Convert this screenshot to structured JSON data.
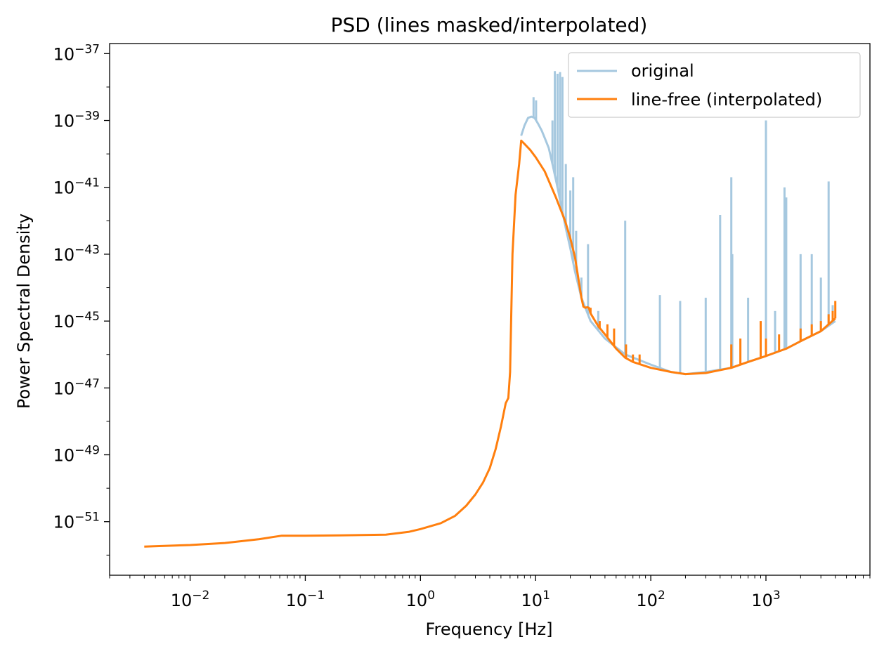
{
  "chart_data": {
    "type": "line",
    "title": "PSD (lines masked/interpolated)",
    "xlabel": "Frequency [Hz]",
    "ylabel": "Power Spectral Density",
    "xscale": "log",
    "yscale": "log",
    "xlim": [
      0.002,
      8000
    ],
    "ylim": [
      2.5e-53,
      2e-37
    ],
    "x_ticks": [
      {
        "value": 0.01,
        "base": "10",
        "exp": "−2"
      },
      {
        "value": 0.1,
        "base": "10",
        "exp": "−1"
      },
      {
        "value": 1,
        "base": "10",
        "exp": "0"
      },
      {
        "value": 10,
        "base": "10",
        "exp": "1"
      },
      {
        "value": 100,
        "base": "10",
        "exp": "2"
      },
      {
        "value": 1000,
        "base": "10",
        "exp": "3"
      }
    ],
    "y_ticks": [
      {
        "value": 1e-37,
        "base": "10",
        "exp": "−37"
      },
      {
        "value": 1e-39,
        "base": "10",
        "exp": "−39"
      },
      {
        "value": 1e-41,
        "base": "10",
        "exp": "−41"
      },
      {
        "value": 1e-43,
        "base": "10",
        "exp": "−43"
      },
      {
        "value": 1e-45,
        "base": "10",
        "exp": "−45"
      },
      {
        "value": 1e-47,
        "base": "10",
        "exp": "−47"
      },
      {
        "value": 1e-49,
        "base": "10",
        "exp": "−49"
      },
      {
        "value": 1e-51,
        "base": "10",
        "exp": "−51"
      }
    ],
    "grid": false,
    "legend_position": "top-right",
    "series": [
      {
        "name": "original",
        "color": "#a6c8df",
        "x": [
          7.5,
          8.0,
          8.6,
          9.2,
          9.8,
          10.5,
          11.3,
          12.0,
          13.0,
          14.0,
          15.5,
          17.0,
          18.5,
          20.0,
          22.0,
          25.0,
          30.0,
          40.0,
          60.0,
          100.0,
          150.0,
          200.0,
          300.0,
          500.0,
          700.0,
          1000.0,
          1500.0,
          2000.0,
          3000.0,
          4000.0
        ],
        "y": [
          3.5e-40,
          7e-40,
          1.2e-39,
          1.3e-39,
          1.2e-39,
          8e-40,
          5e-40,
          3e-40,
          1.5e-40,
          5e-41,
          1e-41,
          2e-42,
          5e-43,
          1.5e-43,
          3e-44,
          5e-45,
          1e-45,
          3e-46,
          1e-46,
          5e-47,
          3e-47,
          2.6e-47,
          3e-47,
          4e-47,
          6e-47,
          9e-47,
          1.5e-46,
          2.5e-46,
          5e-46,
          1e-45
        ],
        "spikes": [
          {
            "x": 9.6,
            "y": 5e-39
          },
          {
            "x": 10.1,
            "y": 4e-39
          },
          {
            "x": 14.7,
            "y": 3e-38
          },
          {
            "x": 15.5,
            "y": 2.5e-38
          },
          {
            "x": 16.3,
            "y": 2.8e-38
          },
          {
            "x": 17.1,
            "y": 2e-38
          },
          {
            "x": 14.0,
            "y": 1e-39
          },
          {
            "x": 18.3,
            "y": 5e-41
          },
          {
            "x": 20.0,
            "y": 8e-42
          },
          {
            "x": 21.2,
            "y": 2e-41
          },
          {
            "x": 22.5,
            "y": 5e-43
          },
          {
            "x": 25.0,
            "y": 2e-44
          },
          {
            "x": 28.5,
            "y": 2e-43
          },
          {
            "x": 35.0,
            "y": 2e-45
          },
          {
            "x": 60.0,
            "y": 1e-42
          },
          {
            "x": 120.0,
            "y": 6e-45
          },
          {
            "x": 180.0,
            "y": 4e-45
          },
          {
            "x": 300.0,
            "y": 5e-45
          },
          {
            "x": 400.0,
            "y": 1.5e-42
          },
          {
            "x": 500.0,
            "y": 2e-41
          },
          {
            "x": 510.0,
            "y": 1e-43
          },
          {
            "x": 700.0,
            "y": 5e-45
          },
          {
            "x": 1000.0,
            "y": 1e-39
          },
          {
            "x": 1200.0,
            "y": 2e-45
          },
          {
            "x": 1450.0,
            "y": 1e-41
          },
          {
            "x": 1500.0,
            "y": 5e-42
          },
          {
            "x": 2000.0,
            "y": 1e-43
          },
          {
            "x": 2500.0,
            "y": 1e-43
          },
          {
            "x": 3000.0,
            "y": 2e-44
          },
          {
            "x": 3500.0,
            "y": 1.5e-41
          },
          {
            "x": 3800.0,
            "y": 3e-45
          }
        ]
      },
      {
        "name": "line-free (interpolated)",
        "color": "#ff7f0e",
        "x": [
          0.004,
          0.01,
          0.02,
          0.04,
          0.0625,
          0.1,
          0.2,
          0.5,
          0.8,
          1.0,
          1.5,
          2.0,
          2.5,
          3.0,
          3.5,
          4.0,
          4.5,
          5.0,
          5.5,
          5.8,
          6.0,
          6.3,
          6.7,
          7.2,
          7.5,
          8.0,
          9.0,
          10.0,
          12.0,
          15.0,
          18.0,
          20.0,
          22.0,
          25.0,
          26.0,
          27.0,
          28.0,
          29.0,
          30.0,
          35.0,
          40.0,
          50.0,
          60.0,
          70.0,
          100.0,
          150.0,
          200.0,
          300.0,
          500.0,
          700.0,
          1000.0,
          1500.0,
          2000.0,
          3000.0,
          3500.0,
          4000.0
        ],
        "y": [
          1.8e-52,
          2e-52,
          2.3e-52,
          3e-52,
          3.8e-52,
          3.8e-52,
          3.9e-52,
          4.1e-52,
          5e-52,
          6e-52,
          9e-52,
          1.5e-51,
          3e-51,
          6.5e-51,
          1.5e-50,
          4e-50,
          1.5e-49,
          7e-49,
          3.5e-48,
          5e-48,
          3e-47,
          1e-43,
          6e-42,
          5e-41,
          2.5e-40,
          2e-40,
          1.3e-40,
          8e-41,
          3e-41,
          5e-42,
          1e-42,
          3e-43,
          8e-44,
          5e-45,
          2.7e-45,
          2.5e-45,
          2.6e-45,
          2.5e-45,
          1.7e-45,
          7e-46,
          4e-46,
          1.5e-46,
          8e-47,
          6e-47,
          4e-47,
          3e-47,
          2.6e-47,
          2.8e-47,
          4e-47,
          6e-47,
          9e-47,
          1.5e-46,
          2.5e-46,
          5e-46,
          8e-46,
          1.2e-45
        ],
        "spikes": [
          {
            "x": 30.0,
            "y": 2.5e-45
          },
          {
            "x": 36.0,
            "y": 1e-45
          },
          {
            "x": 42.0,
            "y": 8e-46
          },
          {
            "x": 48.0,
            "y": 6e-46
          },
          {
            "x": 61.0,
            "y": 2e-46
          },
          {
            "x": 70.0,
            "y": 1e-46
          },
          {
            "x": 80.0,
            "y": 1e-46
          },
          {
            "x": 500.0,
            "y": 2e-46
          },
          {
            "x": 600.0,
            "y": 3e-46
          },
          {
            "x": 900.0,
            "y": 1e-45
          },
          {
            "x": 1000.0,
            "y": 3e-46
          },
          {
            "x": 1300.0,
            "y": 4e-46
          },
          {
            "x": 2000.0,
            "y": 6e-46
          },
          {
            "x": 2500.0,
            "y": 8e-46
          },
          {
            "x": 3000.0,
            "y": 1e-45
          },
          {
            "x": 3500.0,
            "y": 1.6e-45
          },
          {
            "x": 3800.0,
            "y": 2e-45
          },
          {
            "x": 4000.0,
            "y": 4e-45
          }
        ]
      }
    ]
  }
}
